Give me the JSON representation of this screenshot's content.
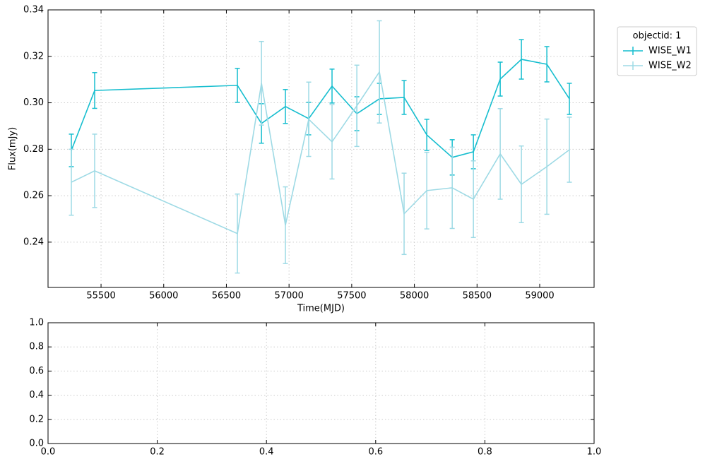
{
  "chart_data": [
    {
      "type": "errorbar-line",
      "xlabel": "Time(MJD)",
      "ylabel": "Flux(mJy)",
      "x": [
        55263,
        55449,
        56588,
        56780,
        56971,
        57157,
        57343,
        57541,
        57721,
        57918,
        58099,
        58302,
        58471,
        58685,
        58854,
        59057,
        59237
      ],
      "series": [
        {
          "name": "WISE_W1",
          "color": "#17becf",
          "values": [
            0.2795,
            0.3053,
            0.3075,
            0.2911,
            0.2984,
            0.2932,
            0.3072,
            0.2953,
            0.3017,
            0.3023,
            0.2862,
            0.2765,
            0.2789,
            0.3102,
            0.3187,
            0.3166,
            0.3017
          ],
          "errors": [
            0.007,
            0.0077,
            0.0073,
            0.0085,
            0.0073,
            0.007,
            0.0073,
            0.0073,
            0.0067,
            0.0073,
            0.0067,
            0.0076,
            0.0073,
            0.0073,
            0.0085,
            0.0076,
            0.0067
          ]
        },
        {
          "name": "WISE_W2",
          "color": "#9edae5",
          "values": [
            0.2658,
            0.2707,
            0.2437,
            0.3084,
            0.2473,
            0.2929,
            0.2832,
            0.2987,
            0.3133,
            0.2522,
            0.2622,
            0.2634,
            0.2585,
            0.278,
            0.2649,
            0.2725,
            0.2798
          ],
          "errors": [
            0.0142,
            0.0158,
            0.017,
            0.018,
            0.0165,
            0.016,
            0.016,
            0.0175,
            0.022,
            0.0175,
            0.0165,
            0.0175,
            0.0165,
            0.0195,
            0.0165,
            0.0205,
            0.014
          ]
        }
      ],
      "legend_title": "objectid: 1",
      "legend": "outside upper right",
      "xlim": [
        55077,
        59434
      ],
      "xticks": [
        55500,
        56000,
        56500,
        57000,
        57500,
        58000,
        58500,
        59000
      ],
      "ylim": [
        0.2205,
        0.34
      ],
      "yticks": [
        0.24,
        0.26,
        0.28,
        {
          "value": 0.3,
          "label": "0.30"
        },
        0.32,
        0.34
      ],
      "grid": true
    },
    {
      "type": "empty",
      "xlim": [
        0,
        1
      ],
      "xticks": [
        {
          "value": 0,
          "label": "0.0"
        },
        0.2,
        0.4,
        0.6,
        0.8,
        {
          "value": 1,
          "label": "1.0"
        }
      ],
      "ylim": [
        0,
        1
      ],
      "yticks": [
        {
          "value": 0,
          "label": "0.0"
        },
        0.2,
        0.4,
        0.6,
        0.8,
        {
          "value": 1,
          "label": "1.0"
        }
      ],
      "grid": true
    }
  ]
}
